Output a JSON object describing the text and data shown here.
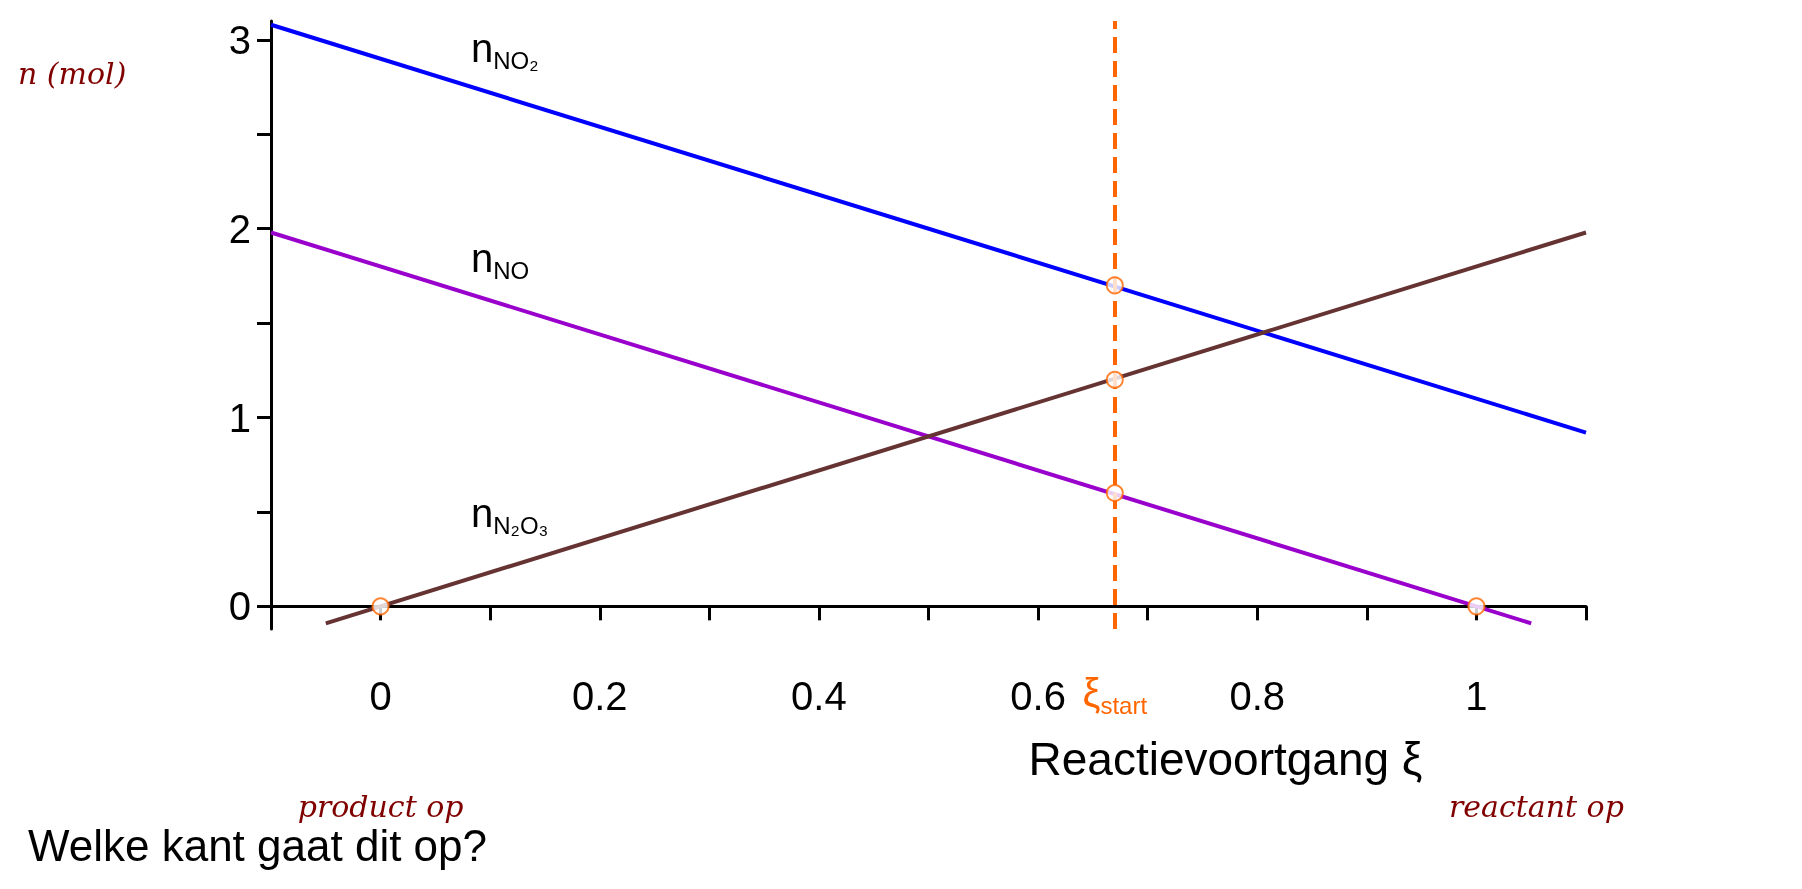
{
  "chart_data": {
    "type": "line",
    "xlabel": "Reactievoortgang ξ",
    "ylabel": "n (mol)",
    "xlim": [
      -0.1,
      1.1
    ],
    "ylim": [
      -0.12,
      3.1
    ],
    "xticks": [
      {
        "value": -0.1,
        "label": null
      },
      0,
      {
        "value": 0.1,
        "label": null
      },
      0.2,
      {
        "value": 0.3,
        "label": null
      },
      0.4,
      {
        "value": 0.5,
        "label": null
      },
      0.6,
      {
        "value": 0.7,
        "label": null
      },
      0.8,
      {
        "value": 0.9,
        "label": null
      },
      1,
      {
        "value": 1.1,
        "label": null
      }
    ],
    "yticks": [
      0,
      {
        "value": 0.5,
        "label": null
      },
      1,
      {
        "value": 1.5,
        "label": null
      },
      2,
      {
        "value": 2.5,
        "label": null
      },
      3
    ],
    "grid": false,
    "legend": false,
    "marker": "none",
    "line_style": "solid",
    "series": [
      {
        "name": "n$_{NO₂}$",
        "color": "#0000ff",
        "x": [
          -0.1,
          1.1
        ],
        "values": [
          3.08,
          0.92
        ]
      },
      {
        "name": "n$_{NO}$",
        "color": "#9900cc",
        "x": [
          -0.1,
          1.05
        ],
        "values": [
          1.98,
          -0.09
        ]
      },
      {
        "name": "n$_{N₂O₃}$",
        "color": "#663333",
        "x": [
          -0.05,
          1.1
        ],
        "values": [
          -0.09,
          1.98
        ]
      },
      {
        "type": "scatter",
        "marker": "circle",
        "color": "#ff6600",
        "x": [
          0,
          0.67,
          0.67,
          0.67,
          1
        ],
        "values": [
          0,
          1.7,
          1.2,
          0.6,
          0
        ]
      }
    ],
    "ref_lines": [
      {
        "axis": "x",
        "value": 0.67,
        "label": "ξ$_{start}$",
        "color": "#ff6600",
        "line_style": "dashed"
      }
    ],
    "annotations": [
      "product op",
      "reactant op",
      "Welke kant gaat dit op?"
    ]
  }
}
